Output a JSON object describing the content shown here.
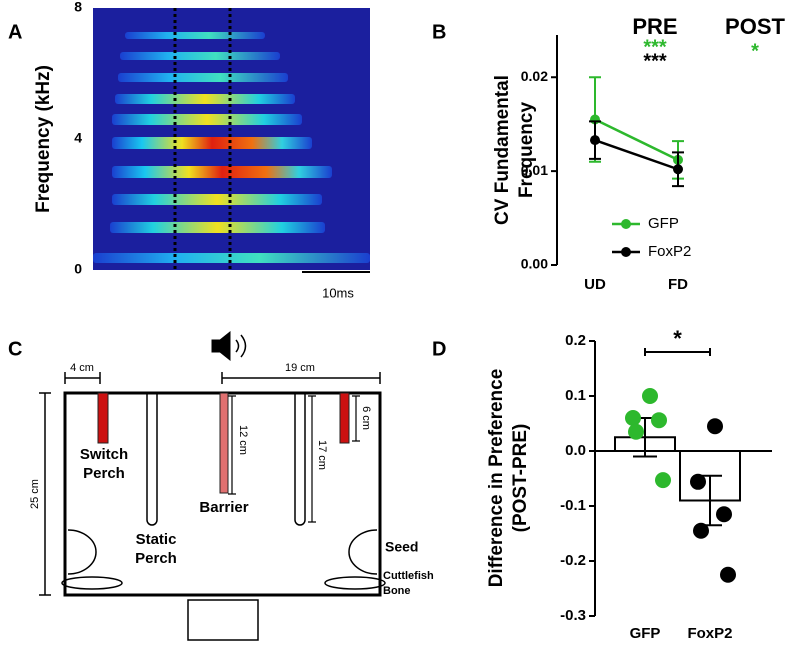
{
  "panels": [
    "A",
    "B",
    "C",
    "D"
  ],
  "chart_data": [
    {
      "type": "spectrogram",
      "ylabel": "Frequency (kHz)",
      "ylim": [
        0,
        8
      ],
      "yticks": [
        0,
        4,
        8
      ],
      "scale_bar": "10ms"
    },
    {
      "type": "line",
      "ylabel": [
        "CV Fundamental",
        "Frequency"
      ],
      "categories": [
        "UD",
        "FD"
      ],
      "series": [
        {
          "name": "GFP",
          "color": "#2db82d",
          "values": [
            0.0155,
            0.0112
          ],
          "errors": [
            0.0045,
            0.002
          ]
        },
        {
          "name": "FoxP2",
          "color": "#000000",
          "values": [
            0.0133,
            0.0102
          ],
          "errors": [
            0.002,
            0.0018
          ]
        }
      ],
      "ylim": [
        0,
        0.0245
      ],
      "yticks": [
        {
          "value": 0,
          "label": "0.00"
        },
        {
          "value": 0.01,
          "label": "0.01"
        },
        {
          "value": 0.02,
          "label": "0.02"
        }
      ],
      "annotations": [
        {
          "text": "PRE",
          "color": "#000000"
        },
        {
          "text": "POST",
          "color": "#000000"
        },
        {
          "text": "***",
          "color": "#2db82d"
        },
        {
          "text": "***",
          "color": "#000000"
        },
        {
          "text": "*",
          "color": "#2db82d"
        }
      ],
      "legend": "lower right"
    },
    {
      "type": "bar",
      "ylabel": [
        "Difference in Preference",
        "(POST-PRE)"
      ],
      "categories": [
        "GFP",
        "FoxP2"
      ],
      "values": [
        0.025,
        -0.09
      ],
      "errors": [
        0.035,
        0.045
      ],
      "bar_color": "#ffffff",
      "points": [
        {
          "color": "#2db82d",
          "values": [
            0.1,
            0.06,
            0.056,
            0.035,
            -0.053
          ]
        },
        {
          "color": "#000000",
          "values": [
            0.045,
            -0.056,
            -0.115,
            -0.145,
            -0.225
          ]
        }
      ],
      "ylim": [
        -0.3,
        0.2
      ],
      "yticks": [
        0.2,
        0.1,
        {
          "value": 0,
          "label": "0.0"
        },
        -0.1,
        -0.2,
        -0.3
      ],
      "significance": "*"
    }
  ],
  "diagram": {
    "dims": [
      "4 cm",
      "19 cm",
      "25 cm",
      "12 cm",
      "17 cm",
      "6 cm"
    ],
    "labels": [
      "Switch",
      "Perch",
      "Static",
      "Perch",
      "Barrier",
      "Seed",
      "Cuttlefish",
      "Bone"
    ]
  }
}
